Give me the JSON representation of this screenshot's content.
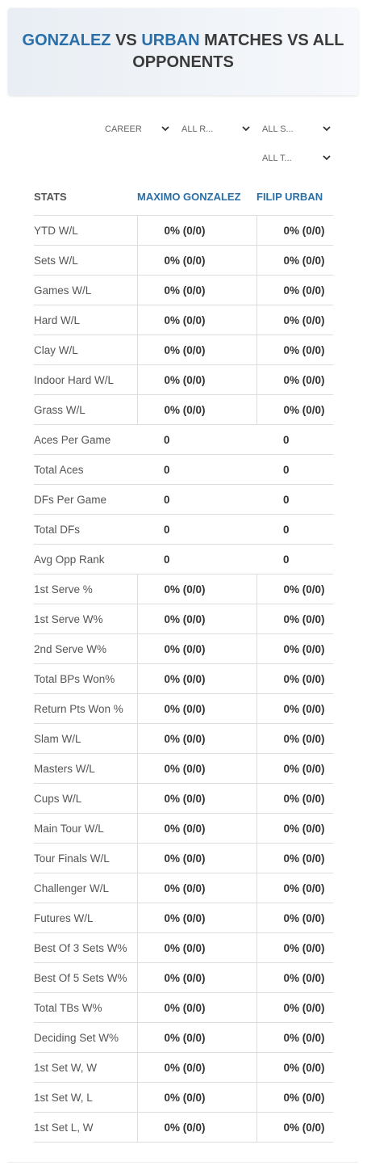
{
  "header": {
    "title": [
      "GONZALEZ",
      "VS",
      "URBAN",
      "MATCHES VS ALL OPPONENTS"
    ]
  },
  "filters": [
    "CAREER",
    "ALL R...",
    "ALL S...",
    "ALL T..."
  ],
  "table": {
    "columns": [
      "STATS",
      "MAXIMO GONZALEZ",
      "FILIP URBAN"
    ],
    "rows": [
      [
        "YTD W/L",
        "0% (0/0)",
        "0% (0/0)"
      ],
      [
        "Sets W/L",
        "0% (0/0)",
        "0% (0/0)"
      ],
      [
        "Games W/L",
        "0% (0/0)",
        "0% (0/0)"
      ],
      [
        "Hard W/L",
        "0% (0/0)",
        "0% (0/0)"
      ],
      [
        "Clay W/L",
        "0% (0/0)",
        "0% (0/0)"
      ],
      [
        "Indoor Hard W/L",
        "0% (0/0)",
        "0% (0/0)"
      ],
      [
        "Grass W/L",
        "0% (0/0)",
        "0% (0/0)"
      ],
      [
        "Aces Per Game",
        "0",
        "0"
      ],
      [
        "Total Aces",
        "0",
        "0"
      ],
      [
        "DFs Per Game",
        "0",
        "0"
      ],
      [
        "Total DFs",
        "0",
        "0"
      ],
      [
        "Avg Opp Rank",
        "0",
        "0"
      ],
      [
        "1st Serve %",
        "0% (0/0)",
        "0% (0/0)"
      ],
      [
        "1st Serve W%",
        "0% (0/0)",
        "0% (0/0)"
      ],
      [
        "2nd Serve W%",
        "0% (0/0)",
        "0% (0/0)"
      ],
      [
        "Total BPs Won%",
        "0% (0/0)",
        "0% (0/0)"
      ],
      [
        "Return Pts Won %",
        "0% (0/0)",
        "0% (0/0)"
      ],
      [
        "Slam W/L",
        "0% (0/0)",
        "0% (0/0)"
      ],
      [
        "Masters W/L",
        "0% (0/0)",
        "0% (0/0)"
      ],
      [
        "Cups W/L",
        "0% (0/0)",
        "0% (0/0)"
      ],
      [
        "Main Tour W/L",
        "0% (0/0)",
        "0% (0/0)"
      ],
      [
        "Tour Finals W/L",
        "0% (0/0)",
        "0% (0/0)"
      ],
      [
        "Challenger W/L",
        "0% (0/0)",
        "0% (0/0)"
      ],
      [
        "Futures W/L",
        "0% (0/0)",
        "0% (0/0)"
      ],
      [
        "Best Of 3 Sets W%",
        "0% (0/0)",
        "0% (0/0)"
      ],
      [
        "Best Of 5 Sets W%",
        "0% (0/0)",
        "0% (0/0)"
      ],
      [
        "Total TBs W%",
        "0% (0/0)",
        "0% (0/0)"
      ],
      [
        "Deciding Set W%",
        "0% (0/0)",
        "0% (0/0)"
      ],
      [
        "1st Set W, W",
        "0% (0/0)",
        "0% (0/0)"
      ],
      [
        "1st Set W, L",
        "0% (0/0)",
        "0% (0/0)"
      ],
      [
        "1st Set L, W",
        "0% (0/0)",
        "0% (0/0)"
      ]
    ]
  }
}
